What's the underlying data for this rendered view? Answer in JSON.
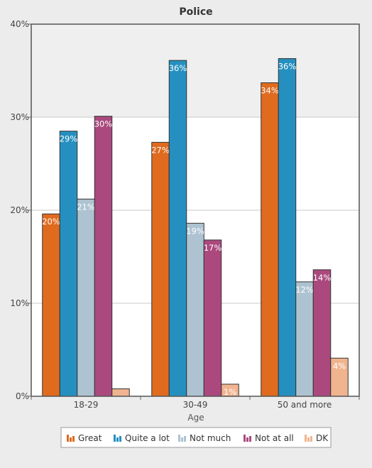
{
  "chart_data": {
    "type": "bar",
    "title": "Police",
    "xlabel": "Age",
    "ylabel": "",
    "categories": [
      "18-29",
      "30-49",
      "50 and more"
    ],
    "ylim": [
      0,
      40
    ],
    "yticks": [
      "0%",
      "10%",
      "20%",
      "30%",
      "40%"
    ],
    "series": [
      {
        "name": "Great",
        "color": "#e06b1f",
        "values": [
          19.6,
          27.3,
          33.7
        ],
        "labels": [
          "20%",
          "27%",
          "34%"
        ]
      },
      {
        "name": "Quite a lot",
        "color": "#2590c0",
        "values": [
          28.5,
          36.1,
          36.3
        ],
        "labels": [
          "29%",
          "36%",
          "36%"
        ]
      },
      {
        "name": "Not much",
        "color": "#aec3d2",
        "values": [
          21.2,
          18.6,
          12.3
        ],
        "labels": [
          "21%",
          "19%",
          "12%"
        ]
      },
      {
        "name": "Not at all",
        "color": "#ab497e",
        "values": [
          30.1,
          16.8,
          13.6
        ],
        "labels": [
          "30%",
          "17%",
          "14%"
        ]
      },
      {
        "name": "DK",
        "color": "#f0b48e",
        "values": [
          0.8,
          1.3,
          4.1
        ],
        "labels": [
          "",
          "1%",
          "4%"
        ]
      }
    ],
    "grid": true,
    "legend_position": "bottom"
  }
}
